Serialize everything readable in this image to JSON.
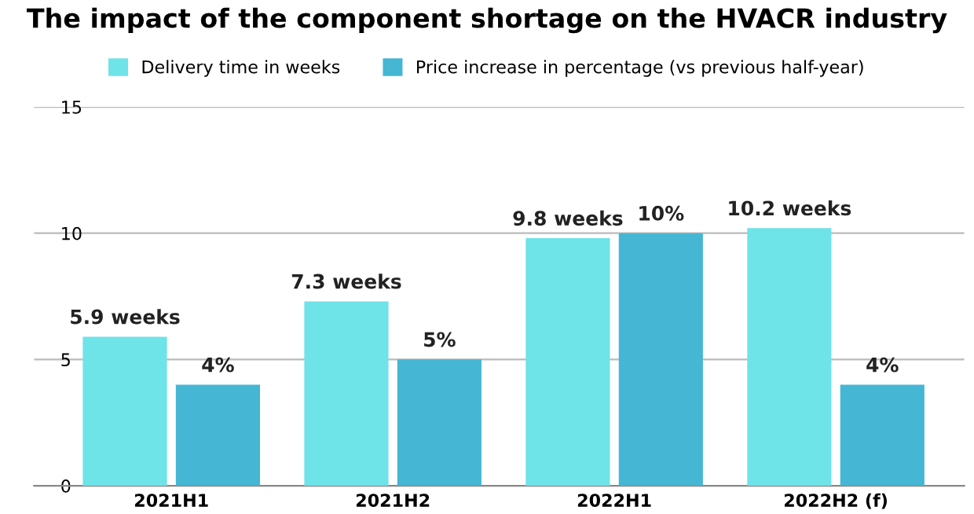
{
  "chart_data": {
    "type": "bar",
    "title": "The impact of the component shortage on the HVACR industry",
    "categories": [
      "2021H1",
      "2021H2",
      "2022H1",
      "2022H2 (f)"
    ],
    "series": [
      {
        "name": "Delivery time in weeks",
        "color": "#6ee3e8",
        "values": [
          5.9,
          7.3,
          9.8,
          10.2
        ],
        "value_labels": [
          "5.9 weeks",
          "7.3 weeks",
          "9.8 weeks",
          "10.2 weeks"
        ]
      },
      {
        "name": "Price increase in percentage (vs previous half-year)",
        "color": "#45b6d4",
        "values": [
          4,
          5,
          10,
          4
        ],
        "value_labels": [
          "4%",
          "5%",
          "10%",
          "4%"
        ]
      }
    ],
    "ylim": [
      0,
      15
    ],
    "yticks": [
      0,
      5,
      10,
      15
    ],
    "grid": "y",
    "legend": "top"
  }
}
